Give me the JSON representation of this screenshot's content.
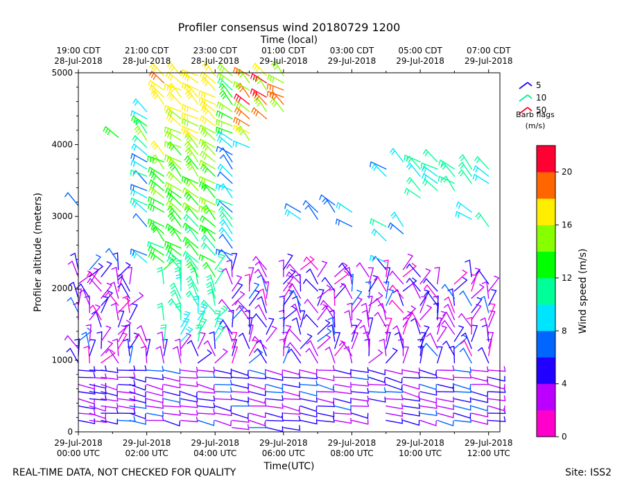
{
  "chart_data": {
    "type": "wind-barb-profile",
    "title": "Profiler consensus wind 20180729 1200",
    "xlabel": "Time(UTC)",
    "xlabel_top": "Time (local)",
    "ylabel": "Profiler altitude (meters)",
    "xlim_hours_utc": [
      0,
      12.33
    ],
    "ylim": [
      0,
      5000
    ],
    "y_ticks": [
      "0",
      "1000",
      "2000",
      "3000",
      "4000",
      "5000"
    ],
    "bottom_ticks": [
      {
        "hour": 0,
        "line1": "29-Jul-2018",
        "line2": "00:00 UTC"
      },
      {
        "hour": 2,
        "line1": "29-Jul-2018",
        "line2": "02:00 UTC"
      },
      {
        "hour": 4,
        "line1": "29-Jul-2018",
        "line2": "04:00 UTC"
      },
      {
        "hour": 6,
        "line1": "29-Jul-2018",
        "line2": "06:00 UTC"
      },
      {
        "hour": 8,
        "line1": "29-Jul-2018",
        "line2": "08:00 UTC"
      },
      {
        "hour": 10,
        "line1": "29-Jul-2018",
        "line2": "10:00 UTC"
      },
      {
        "hour": 12,
        "line1": "29-Jul-2018",
        "line2": "12:00 UTC"
      }
    ],
    "top_ticks": [
      {
        "hour": 0,
        "line1": "19:00 CDT",
        "line2": "28-Jul-2018"
      },
      {
        "hour": 2,
        "line1": "21:00 CDT",
        "line2": "28-Jul-2018"
      },
      {
        "hour": 4,
        "line1": "23:00 CDT",
        "line2": "28-Jul-2018"
      },
      {
        "hour": 6,
        "line1": "01:00 CDT",
        "line2": "29-Jul-2018"
      },
      {
        "hour": 8,
        "line1": "03:00 CDT",
        "line2": "29-Jul-2018"
      },
      {
        "hour": 10,
        "line1": "05:00 CDT",
        "line2": "29-Jul-2018"
      },
      {
        "hour": 12,
        "line1": "07:00 CDT",
        "line2": "29-Jul-2018"
      }
    ],
    "barb_legend": {
      "title_line1": "Barb flags",
      "title_line2": "(m/s)",
      "items": [
        {
          "label": "5",
          "color": "#2200ff"
        },
        {
          "label": "10",
          "color": "#00ee99"
        },
        {
          "label": "50",
          "color": "#ff0022"
        }
      ]
    },
    "colorbar": {
      "label": "Wind speed (m/s)",
      "range": [
        0,
        22
      ],
      "tick_labels": [
        "0",
        "4",
        "8",
        "12",
        "16",
        "20"
      ],
      "tick_values": [
        0,
        4,
        8,
        12,
        16,
        20
      ],
      "colors": [
        "#ff00cc",
        "#bb00ff",
        "#2200ff",
        "#0066ff",
        "#00e5ff",
        "#00ff99",
        "#00ff00",
        "#88ff00",
        "#ffee00",
        "#ff6600",
        "#ff0033"
      ]
    },
    "series": [
      {
        "hour": 0.0,
        "heights": [
          160,
          260,
          360,
          460,
          560,
          660,
          760,
          860,
          960,
          1060,
          1160,
          1260,
          1560,
          1660,
          1760,
          1860,
          2060,
          2160,
          2260,
          3150
        ]
      },
      {
        "hour": 0.33,
        "heights": [
          160,
          260,
          360,
          460,
          560,
          660,
          760,
          860,
          960,
          1060,
          1160,
          1260,
          1560,
          1660,
          1760,
          1860,
          2060,
          2160,
          2260
        ]
      },
      {
        "hour": 0.67,
        "heights": [
          160,
          260,
          360,
          460,
          560,
          660,
          760,
          860,
          960,
          1060,
          1160,
          1260,
          1460,
          1560,
          1660,
          1760,
          1860,
          1960,
          2060,
          2160
        ]
      },
      {
        "hour": 1.17,
        "heights": [
          160,
          260,
          360,
          460,
          560,
          660,
          760,
          860,
          960,
          1060,
          1160,
          1260,
          1360,
          1460,
          1560,
          1660,
          1760,
          1860,
          1960,
          2060,
          2160,
          2260,
          2360,
          4100
        ]
      },
      {
        "hour": 1.5,
        "heights": [
          160,
          260,
          360,
          460,
          560,
          660,
          760,
          860,
          960,
          1060,
          1160,
          1260,
          1560,
          1660,
          1760,
          1860,
          1960,
          2060
        ]
      },
      {
        "hour": 2.0,
        "heights": [
          160,
          260,
          360,
          460,
          560,
          660,
          760,
          860,
          960,
          1060,
          1160,
          1260,
          2360,
          2460,
          2860,
          3060,
          3160,
          3260,
          3360,
          3460,
          3560,
          3660,
          3760,
          3860,
          3960,
          4060,
          4160,
          4260,
          4360,
          4460
        ]
      },
      {
        "hour": 2.5,
        "heights": [
          160,
          260,
          360,
          460,
          560,
          660,
          760,
          860,
          960,
          1060,
          1160,
          1260,
          1560,
          2060,
          2260,
          2360,
          2460,
          2560,
          2660,
          2760,
          2860,
          3060,
          3160,
          3260,
          3360,
          3460,
          3560,
          3660,
          3760,
          3860,
          4560,
          4660,
          4760,
          4860,
          4960
        ]
      },
      {
        "hour": 3.0,
        "heights": [
          160,
          260,
          360,
          460,
          560,
          660,
          760,
          860,
          960,
          1060,
          1160,
          1260,
          1360,
          1460,
          1560,
          1660,
          1760,
          1860,
          1960,
          2060,
          2160,
          2260,
          2360,
          2460,
          2560,
          2660,
          2760,
          2860,
          2960,
          3060,
          3160,
          3260,
          3360,
          3460,
          3560,
          3660,
          3760,
          3860,
          3960,
          4060,
          4160,
          4260,
          4360,
          4460,
          4560,
          4660,
          4760,
          4860,
          4960
        ]
      },
      {
        "hour": 3.5,
        "heights": [
          160,
          260,
          360,
          460,
          560,
          660,
          760,
          860,
          960,
          1060,
          1160,
          1260,
          1360,
          1460,
          1560,
          1660,
          1760,
          1860,
          1960,
          2060,
          2160,
          2260,
          2360,
          2460,
          2560,
          2660,
          2760,
          2860,
          2960,
          3060,
          3160,
          3260,
          3360,
          3460,
          3560,
          3660,
          3760,
          3860,
          3960,
          4060,
          4160,
          4260,
          4360,
          4460,
          4560,
          4660,
          4760,
          4860,
          4960
        ]
      },
      {
        "hour": 4.0,
        "heights": [
          160,
          260,
          360,
          460,
          560,
          660,
          760,
          860,
          960,
          1060,
          1160,
          1260,
          1360,
          1460,
          1560,
          1660,
          1760,
          1860,
          1960,
          2060,
          2160,
          2260,
          2360,
          2460,
          2560,
          2660,
          2760,
          2860,
          2960,
          3060,
          3160,
          3260,
          3360,
          3460,
          3560,
          3660,
          3760,
          3860,
          3960,
          4060,
          4160,
          4260,
          4360,
          4460,
          4560,
          4660,
          4760,
          4860,
          4960
        ]
      },
      {
        "hour": 4.5,
        "heights": [
          60,
          160,
          260,
          360,
          460,
          560,
          660,
          760,
          860,
          960,
          1060,
          1160,
          1260,
          1360,
          1460,
          1560,
          1660,
          1760,
          1860,
          1960,
          2060,
          2160,
          2260,
          2360,
          2460,
          2560,
          2660,
          2760,
          2860,
          2960,
          3060,
          3160,
          3260,
          3360,
          3460,
          3560,
          3660,
          3760,
          3860,
          3960,
          4060,
          4160,
          4260,
          4360,
          4460,
          4560,
          4660,
          4760,
          4860,
          4960
        ]
      },
      {
        "hour": 5.0,
        "heights": [
          60,
          160,
          260,
          360,
          460,
          560,
          660,
          760,
          860,
          960,
          1060,
          1160,
          1260,
          1360,
          1460,
          1560,
          1660,
          1760,
          1860,
          1960,
          2060,
          3960,
          4060,
          4160,
          4260,
          4360,
          4460,
          4560,
          4660,
          4760,
          4860,
          4960
        ]
      },
      {
        "hour": 5.5,
        "heights": [
          60,
          160,
          260,
          360,
          460,
          560,
          660,
          760,
          860,
          960,
          1060,
          1160,
          1260,
          1360,
          1460,
          1560,
          1660,
          1760,
          1860,
          1960,
          2060,
          2160,
          2260,
          4360,
          4460,
          4560,
          4660,
          4760,
          4860,
          4960
        ]
      },
      {
        "hour": 6.0,
        "heights": [
          60,
          160,
          260,
          360,
          460,
          560,
          660,
          760,
          860,
          960,
          1060,
          1160,
          1260,
          1360,
          1460,
          1560,
          1660,
          1760,
          1860,
          1960,
          2060,
          2160,
          2260,
          4460,
          4560,
          4660,
          4760,
          4860,
          4960
        ]
      },
      {
        "hour": 6.5,
        "heights": [
          160,
          260,
          360,
          460,
          560,
          660,
          760,
          860,
          960,
          1060,
          1160,
          1260,
          1360,
          1460,
          1560,
          1660,
          1760,
          1860,
          1960,
          2060,
          2160,
          2260,
          2960,
          3060
        ]
      },
      {
        "hour": 7.0,
        "heights": [
          160,
          260,
          360,
          460,
          560,
          660,
          760,
          860,
          960,
          1060,
          1160,
          1260,
          1360,
          1460,
          1560,
          1660,
          1760,
          1860,
          1960,
          2060,
          2160,
          2260,
          2960,
          3060
        ]
      },
      {
        "hour": 7.5,
        "heights": [
          160,
          260,
          360,
          460,
          560,
          660,
          760,
          860,
          960,
          1060,
          1160,
          1260,
          1360,
          1460,
          1560,
          1660,
          1760,
          1860,
          1960,
          2060,
          2160,
          3060,
          3160
        ]
      },
      {
        "hour": 8.0,
        "heights": [
          160,
          260,
          360,
          460,
          560,
          660,
          760,
          860,
          960,
          1060,
          1160,
          1260,
          1360,
          1460,
          1560,
          1660,
          1760,
          1860,
          1960,
          2060,
          2160,
          2860,
          3060
        ]
      },
      {
        "hour": 8.5,
        "heights": [
          460,
          560,
          660,
          760,
          860,
          960,
          1060,
          1160,
          1260,
          1360,
          1460,
          1560,
          1660,
          1760,
          1860,
          1960,
          2060,
          2160
        ]
      },
      {
        "hour": 9.0,
        "heights": [
          160,
          260,
          360,
          460,
          560,
          660,
          760,
          860,
          960,
          1060,
          1160,
          1260,
          1360,
          1460,
          1560,
          1660,
          1760,
          1860,
          1960,
          2060,
          2160,
          2260,
          2360,
          2660,
          2860,
          3560,
          3660
        ]
      },
      {
        "hour": 9.5,
        "heights": [
          160,
          260,
          360,
          460,
          560,
          660,
          760,
          860,
          960,
          1060,
          1160,
          1260,
          1360,
          1460,
          1560,
          1660,
          1760,
          1860,
          1960,
          2060,
          2160,
          2260,
          2760,
          2860,
          3760
        ]
      },
      {
        "hour": 10.0,
        "heights": [
          160,
          260,
          360,
          460,
          560,
          660,
          760,
          860,
          960,
          1060,
          1160,
          1260,
          1360,
          1460,
          1560,
          1660,
          1760,
          1860,
          1960,
          2060,
          2160,
          3260,
          3360,
          3560,
          3660,
          3760
        ]
      },
      {
        "hour": 10.5,
        "heights": [
          160,
          260,
          360,
          460,
          560,
          660,
          760,
          860,
          960,
          1060,
          1160,
          1260,
          1360,
          1460,
          1560,
          1660,
          1760,
          1860,
          1960,
          2060,
          3360,
          3460,
          3560,
          3660,
          3760
        ]
      },
      {
        "hour": 11.0,
        "heights": [
          160,
          260,
          360,
          460,
          560,
          660,
          760,
          860,
          960,
          1060,
          1160,
          1260,
          1360,
          1460,
          1560,
          1660,
          1760,
          1860,
          1960,
          2060,
          3360,
          3460,
          3560,
          3660
        ]
      },
      {
        "hour": 11.5,
        "heights": [
          160,
          260,
          360,
          460,
          560,
          660,
          760,
          860,
          960,
          1060,
          1160,
          1260,
          1360,
          1460,
          1560,
          1660,
          1760,
          1860,
          1960,
          2060,
          2160,
          2960,
          3060,
          3460,
          3560,
          3660
        ]
      },
      {
        "hour": 12.0,
        "heights": [
          160,
          260,
          360,
          460,
          560,
          660,
          760,
          860,
          960,
          1060,
          1160,
          1260,
          1360,
          1460,
          1560,
          1660,
          1760,
          1860,
          1960,
          2060,
          2860,
          3460,
          3560,
          3660
        ]
      }
    ]
  },
  "footer": {
    "left": "REAL-TIME DATA, NOT CHECKED FOR QUALITY",
    "right": "Site: ISS2"
  }
}
